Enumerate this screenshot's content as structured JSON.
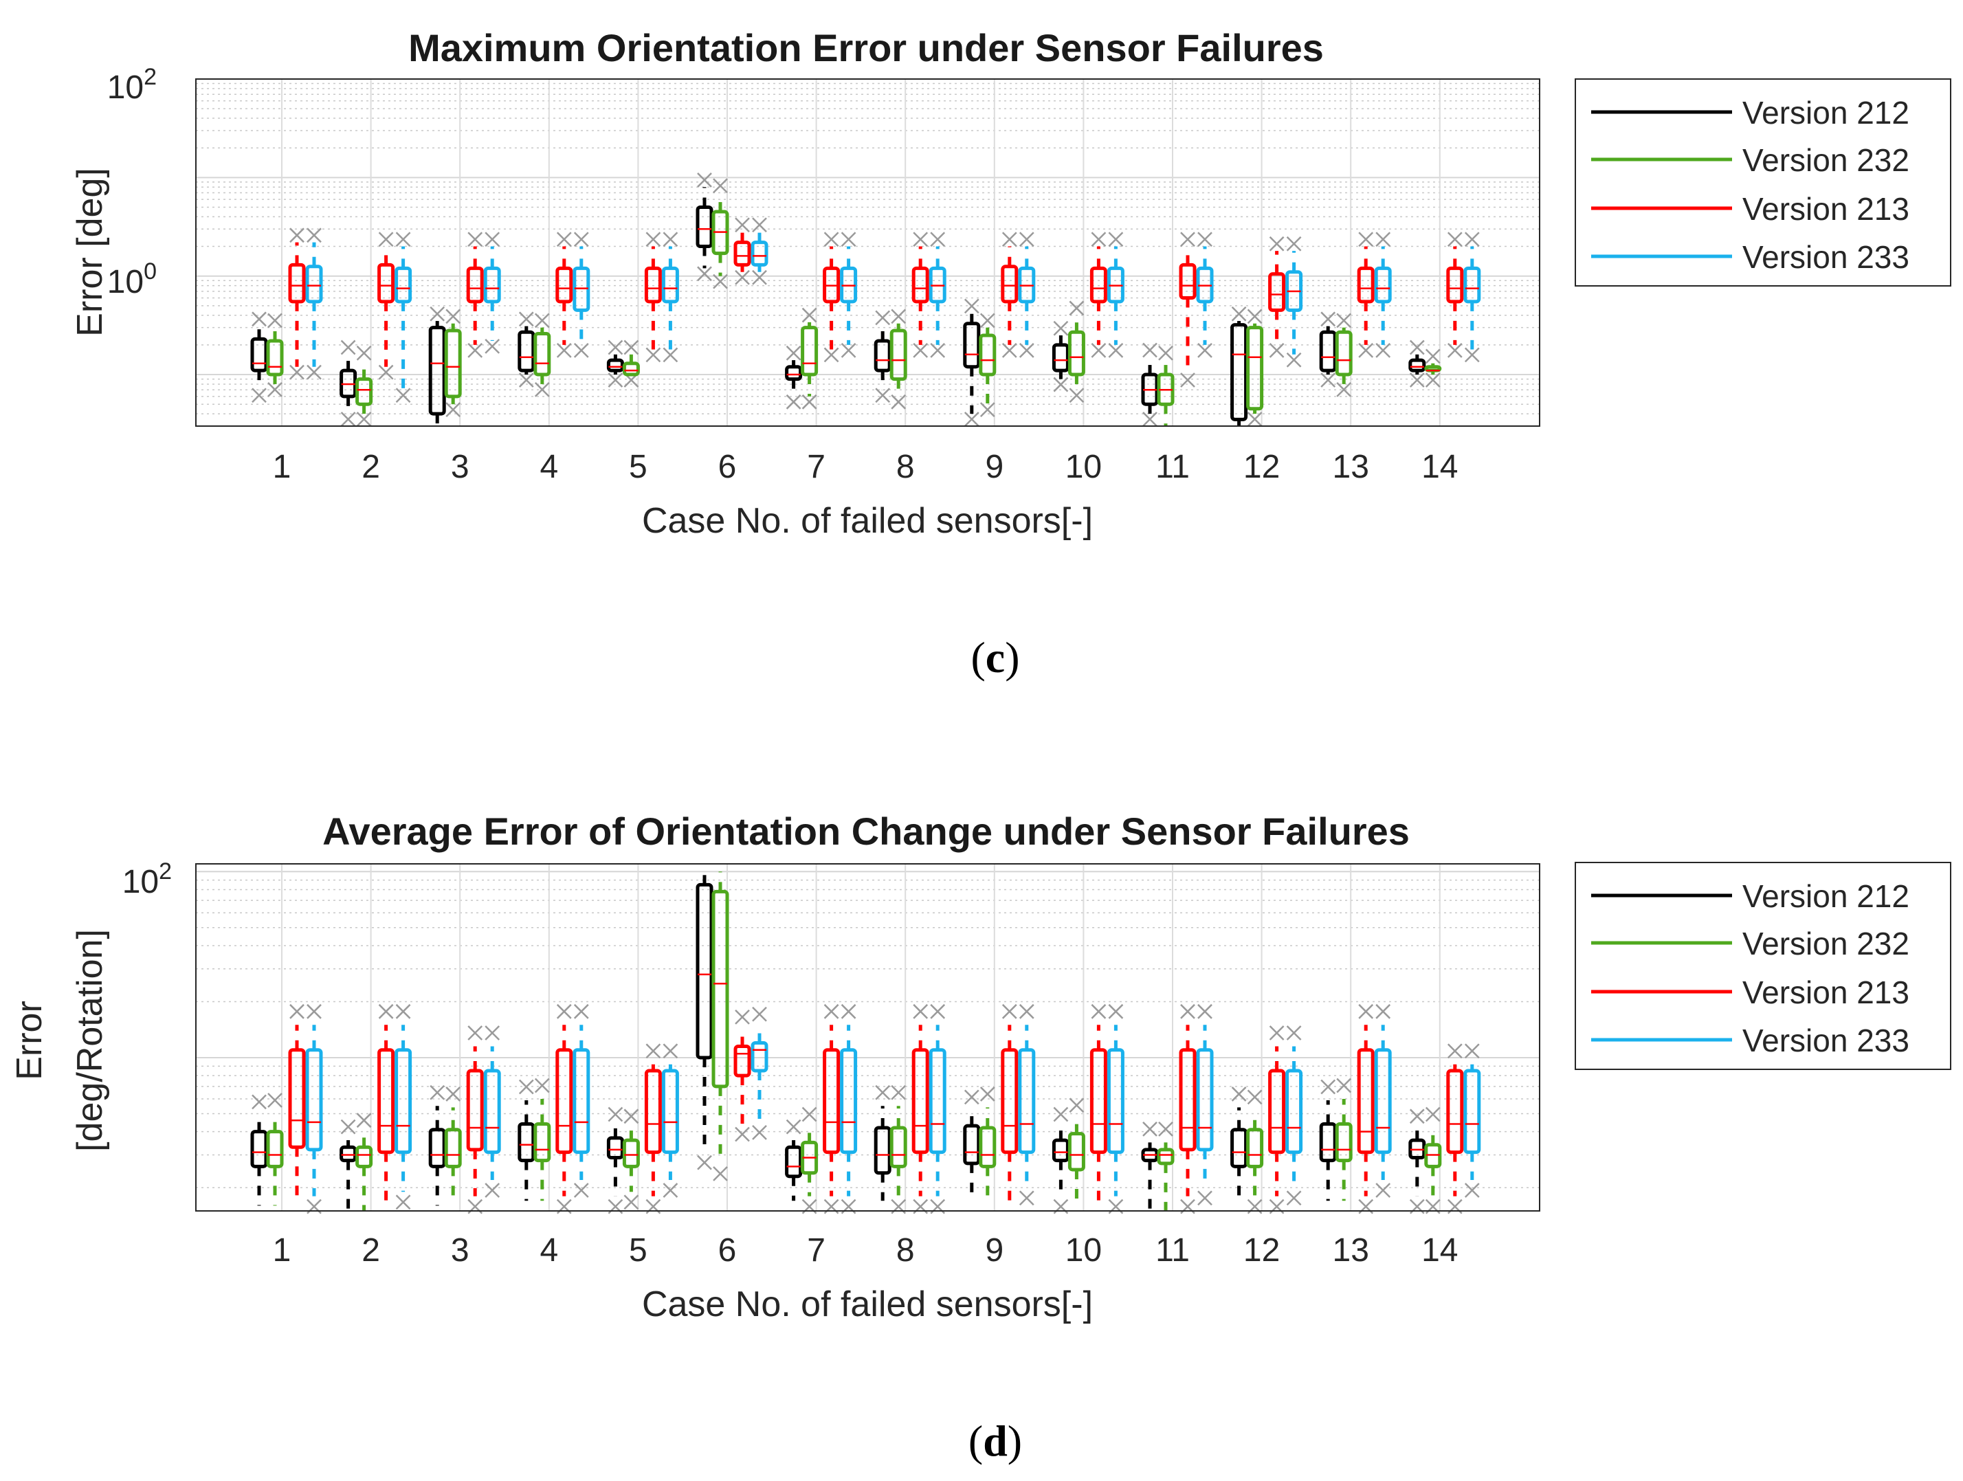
{
  "figure_labels": [
    "c",
    "d"
  ],
  "colors": {
    "Version 212": "#000000",
    "Version 232": "#4fa81e",
    "Version 213": "#ff0000",
    "Version 233": "#1ab1ec",
    "median": "#ff0000",
    "outlier": "#9a9a9a"
  },
  "chart_data": [
    {
      "type": "box",
      "label": "(c)",
      "title": "Maximum Orientation Error under Sensor Failures",
      "xlabel": "Case No. of failed sensors[-]",
      "ylabel": "Error [deg]",
      "yscale": "log",
      "ylim": [
        0.03,
        100
      ],
      "yticks": [
        {
          "exp": "0"
        },
        {
          "exp": "2"
        }
      ],
      "categories": [
        "1",
        "2",
        "3",
        "4",
        "5",
        "6",
        "7",
        "8",
        "9",
        "10",
        "11",
        "12",
        "13",
        "14"
      ],
      "legend": [
        "Version 212",
        "Version 232",
        "Version 213",
        "Version 233"
      ],
      "legend_position": "outside-right",
      "grid": true,
      "series": [
        {
          "name": "Version 212",
          "boxes": [
            [
              0.07,
              0.11,
              0.13,
              0.23,
              0.31
            ],
            [
              0.04,
              0.06,
              0.08,
              0.11,
              0.16
            ],
            [
              0.03,
              0.04,
              0.13,
              0.3,
              0.35
            ],
            [
              0.1,
              0.11,
              0.15,
              0.27,
              0.31
            ],
            [
              0.1,
              0.11,
              0.12,
              0.14,
              0.16
            ],
            [
              1.2,
              2.0,
              3.0,
              5.0,
              8.0
            ],
            [
              0.06,
              0.09,
              0.1,
              0.12,
              0.14
            ],
            [
              0.07,
              0.11,
              0.14,
              0.22,
              0.32
            ],
            [
              0.04,
              0.12,
              0.16,
              0.33,
              0.42
            ],
            [
              0.09,
              0.11,
              0.14,
              0.2,
              0.25
            ],
            [
              0.04,
              0.05,
              0.07,
              0.1,
              0.15
            ],
            [
              0.03,
              0.035,
              0.16,
              0.32,
              0.35
            ],
            [
              0.1,
              0.11,
              0.15,
              0.27,
              0.31
            ],
            [
              0.1,
              0.11,
              0.12,
              0.14,
              0.16
            ]
          ]
        },
        {
          "name": "Version 232",
          "boxes": [
            [
              0.08,
              0.1,
              0.12,
              0.22,
              0.3
            ],
            [
              0.04,
              0.05,
              0.07,
              0.09,
              0.14
            ],
            [
              0.05,
              0.06,
              0.12,
              0.28,
              0.33
            ],
            [
              0.08,
              0.1,
              0.13,
              0.26,
              0.3
            ],
            [
              0.1,
              0.1,
              0.11,
              0.13,
              0.16
            ],
            [
              1.0,
              1.7,
              2.8,
              4.5,
              7.0
            ],
            [
              0.06,
              0.1,
              0.13,
              0.3,
              0.34
            ],
            [
              0.06,
              0.09,
              0.14,
              0.28,
              0.33
            ],
            [
              0.05,
              0.1,
              0.14,
              0.25,
              0.3
            ],
            [
              0.07,
              0.1,
              0.15,
              0.27,
              0.4
            ],
            [
              0.03,
              0.05,
              0.07,
              0.1,
              0.14
            ],
            [
              0.04,
              0.045,
              0.15,
              0.3,
              0.33
            ],
            [
              0.08,
              0.1,
              0.14,
              0.27,
              0.3
            ],
            [
              0.1,
              0.11,
              0.11,
              0.12,
              0.13
            ]
          ]
        },
        {
          "name": "Version 213",
          "boxes": [
            [
              0.12,
              0.55,
              0.8,
              1.3,
              2.2
            ],
            [
              0.12,
              0.55,
              0.8,
              1.3,
              2.0
            ],
            [
              0.2,
              0.55,
              0.75,
              1.2,
              2.0
            ],
            [
              0.2,
              0.55,
              0.75,
              1.2,
              2.0
            ],
            [
              0.18,
              0.55,
              0.75,
              1.2,
              2.0
            ],
            [
              1.1,
              1.3,
              1.6,
              2.2,
              2.8
            ],
            [
              0.18,
              0.55,
              0.8,
              1.2,
              2.0
            ],
            [
              0.2,
              0.55,
              0.75,
              1.2,
              2.0
            ],
            [
              0.2,
              0.55,
              0.8,
              1.25,
              2.0
            ],
            [
              0.2,
              0.55,
              0.75,
              1.2,
              2.0
            ],
            [
              0.1,
              0.6,
              0.8,
              1.3,
              2.0
            ],
            [
              0.2,
              0.45,
              0.65,
              1.05,
              1.8
            ],
            [
              0.2,
              0.55,
              0.75,
              1.2,
              2.0
            ],
            [
              0.2,
              0.55,
              0.75,
              1.2,
              2.0
            ]
          ]
        },
        {
          "name": "Version 233",
          "boxes": [
            [
              0.12,
              0.55,
              0.8,
              1.25,
              2.2
            ],
            [
              0.07,
              0.55,
              0.75,
              1.2,
              2.0
            ],
            [
              0.22,
              0.55,
              0.75,
              1.2,
              2.0
            ],
            [
              0.2,
              0.45,
              0.75,
              1.2,
              2.0
            ],
            [
              0.18,
              0.55,
              0.75,
              1.2,
              2.0
            ],
            [
              1.1,
              1.3,
              1.6,
              2.2,
              2.8
            ],
            [
              0.2,
              0.55,
              0.8,
              1.2,
              2.0
            ],
            [
              0.2,
              0.55,
              0.8,
              1.2,
              2.0
            ],
            [
              0.2,
              0.55,
              0.8,
              1.2,
              2.0
            ],
            [
              0.2,
              0.55,
              0.8,
              1.2,
              2.0
            ],
            [
              0.2,
              0.55,
              0.8,
              1.2,
              2.0
            ],
            [
              0.16,
              0.45,
              0.7,
              1.1,
              1.8
            ],
            [
              0.2,
              0.55,
              0.75,
              1.2,
              2.0
            ],
            [
              0.18,
              0.55,
              0.75,
              1.2,
              2.0
            ]
          ]
        }
      ]
    },
    {
      "type": "box",
      "label": "(d)",
      "title": "Average Error of Orientation Change under Sensor Failures",
      "xlabel": "Case No. of failed sensors[-]",
      "ylabel": [
        "Error",
        "[deg/Rotation]"
      ],
      "yscale": "log",
      "ylim": [
        1.5,
        110
      ],
      "yticks": [
        {
          "exp": "2"
        }
      ],
      "categories": [
        "1",
        "2",
        "3",
        "4",
        "5",
        "6",
        "7",
        "8",
        "9",
        "10",
        "11",
        "12",
        "13",
        "14"
      ],
      "legend": [
        "Version 212",
        "Version 232",
        "Version 213",
        "Version 233"
      ],
      "legend_position": "outside-right",
      "grid": true,
      "series": [
        {
          "name": "Version 212",
          "boxes": [
            [
              1.6,
              2.6,
              3.1,
              4.0,
              4.9
            ],
            [
              1.5,
              2.8,
              3.0,
              3.3,
              3.6
            ],
            [
              1.6,
              2.6,
              3.0,
              4.1,
              5.5
            ],
            [
              1.7,
              2.8,
              3.4,
              4.4,
              5.9
            ],
            [
              1.8,
              2.9,
              3.2,
              3.7,
              4.2
            ],
            [
              3.1,
              10.0,
              28.0,
              85.0,
              100.0
            ],
            [
              1.7,
              2.3,
              2.6,
              3.3,
              3.6
            ],
            [
              1.7,
              2.4,
              3.0,
              4.2,
              5.5
            ],
            [
              1.7,
              2.7,
              3.1,
              4.3,
              5.2
            ],
            [
              1.8,
              2.8,
              3.1,
              3.6,
              4.2
            ],
            [
              1.5,
              2.8,
              3.0,
              3.2,
              3.5
            ],
            [
              1.7,
              2.6,
              3.1,
              4.1,
              5.4
            ],
            [
              1.7,
              2.8,
              3.2,
              4.4,
              5.9
            ],
            [
              1.8,
              2.9,
              3.2,
              3.6,
              4.1
            ]
          ]
        },
        {
          "name": "Version 232",
          "boxes": [
            [
              1.6,
              2.6,
              3.0,
              4.0,
              5.0
            ],
            [
              1.5,
              2.6,
              3.0,
              3.3,
              3.9
            ],
            [
              1.7,
              2.6,
              3.0,
              4.1,
              5.4
            ],
            [
              1.7,
              2.8,
              3.2,
              4.4,
              6.0
            ],
            [
              1.9,
              2.6,
              3.0,
              3.6,
              4.1
            ],
            [
              2.7,
              7.0,
              25.0,
              78.0,
              100.0
            ],
            [
              1.8,
              2.4,
              2.9,
              3.5,
              4.2
            ],
            [
              1.8,
              2.6,
              3.0,
              4.2,
              5.5
            ],
            [
              1.7,
              2.6,
              3.0,
              4.2,
              5.4
            ],
            [
              1.7,
              2.5,
              3.0,
              3.9,
              4.7
            ],
            [
              1.5,
              2.7,
              3.0,
              3.2,
              3.5
            ],
            [
              1.8,
              2.6,
              3.0,
              4.1,
              5.2
            ],
            [
              1.7,
              2.8,
              3.2,
              4.4,
              6.0
            ],
            [
              1.8,
              2.6,
              3.0,
              3.4,
              4.2
            ]
          ]
        },
        {
          "name": "Version 213",
          "boxes": [
            [
              1.7,
              3.3,
              4.6,
              11.0,
              15.0
            ],
            [
              1.7,
              3.1,
              4.3,
              11.0,
              15.0
            ],
            [
              1.8,
              3.2,
              4.2,
              8.5,
              11.5
            ],
            [
              1.8,
              3.1,
              4.3,
              11.0,
              15.0
            ],
            [
              1.8,
              3.1,
              4.4,
              8.5,
              9.2
            ],
            [
              4.4,
              8.0,
              10.5,
              11.5,
              14.0
            ],
            [
              1.8,
              3.1,
              4.5,
              11.0,
              15.0
            ],
            [
              1.8,
              3.1,
              4.3,
              11.0,
              15.0
            ],
            [
              1.7,
              3.1,
              4.3,
              11.0,
              15.0
            ],
            [
              1.7,
              3.1,
              4.4,
              11.0,
              15.0
            ],
            [
              1.8,
              3.2,
              4.2,
              11.0,
              15.0
            ],
            [
              1.8,
              3.1,
              4.2,
              8.5,
              11.5
            ],
            [
              1.8,
              3.1,
              4.0,
              11.0,
              15.0
            ],
            [
              1.8,
              3.1,
              4.4,
              8.5,
              9.2
            ]
          ]
        },
        {
          "name": "Version 233",
          "boxes": [
            [
              1.8,
              3.2,
              4.5,
              11.0,
              15.0
            ],
            [
              1.9,
              3.1,
              4.3,
              11.0,
              15.0
            ],
            [
              2.2,
              3.1,
              4.2,
              8.5,
              11.5
            ],
            [
              2.2,
              3.1,
              4.5,
              11.0,
              15.0
            ],
            [
              2.2,
              3.1,
              4.5,
              8.5,
              9.2
            ],
            [
              4.5,
              8.5,
              11.0,
              12.0,
              14.5
            ],
            [
              1.8,
              3.1,
              4.5,
              11.0,
              15.0
            ],
            [
              1.8,
              3.1,
              4.4,
              11.0,
              15.0
            ],
            [
              2.0,
              3.1,
              4.4,
              11.0,
              15.0
            ],
            [
              1.8,
              3.1,
              4.4,
              11.0,
              15.0
            ],
            [
              2.0,
              3.2,
              4.2,
              11.0,
              15.0
            ],
            [
              2.0,
              3.1,
              4.2,
              8.5,
              11.5
            ],
            [
              2.2,
              3.1,
              4.2,
              11.0,
              15.0
            ],
            [
              2.2,
              3.1,
              4.4,
              8.5,
              9.2
            ]
          ]
        }
      ]
    }
  ]
}
